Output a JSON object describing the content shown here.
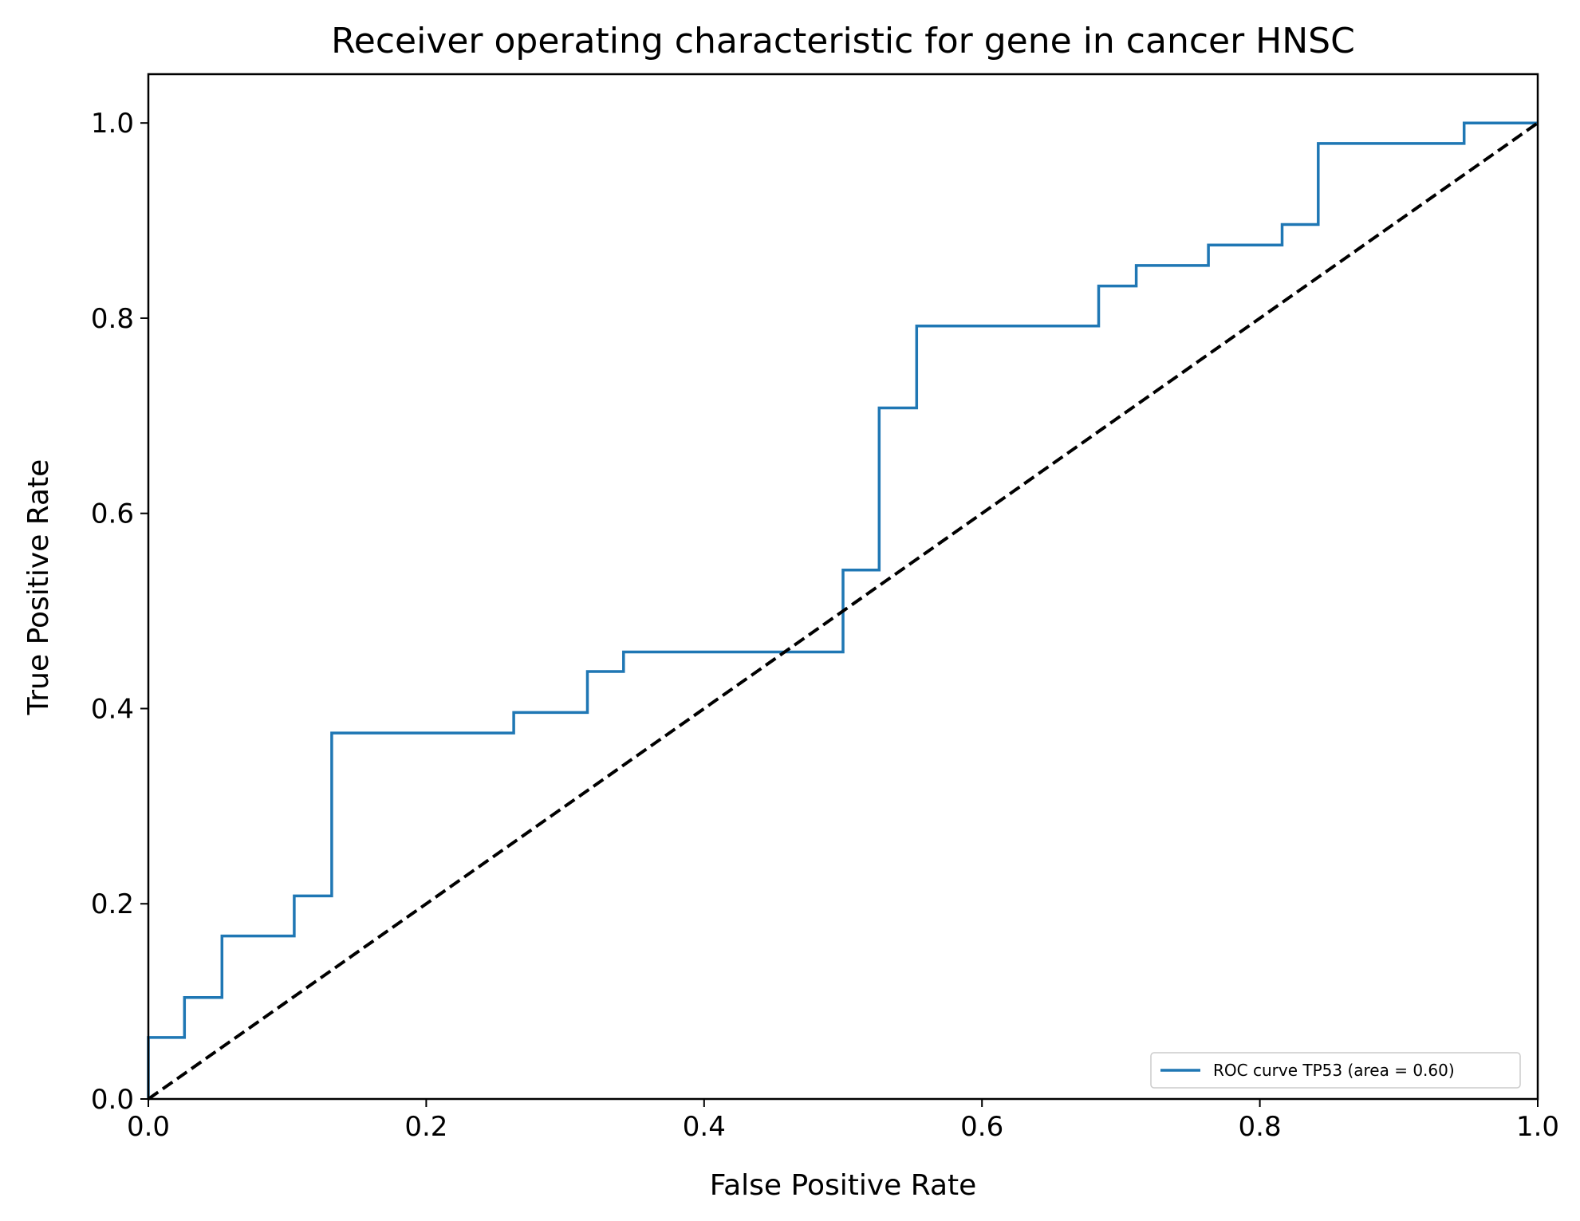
{
  "chart_data": {
    "type": "line",
    "title": "Receiver operating characteristic for gene in cancer HNSC",
    "xlabel": "False Positive Rate",
    "ylabel": "True Positive Rate",
    "xlim": [
      0.0,
      1.0
    ],
    "ylim": [
      0.0,
      1.05
    ],
    "xticks": [
      "0.0",
      "0.2",
      "0.4",
      "0.6",
      "0.8",
      "1.0"
    ],
    "yticks": [
      "0.0",
      "0.2",
      "0.4",
      "0.6",
      "0.8",
      "1.0"
    ],
    "grid": false,
    "legend_position": "lower-right",
    "series": [
      {
        "name": "ROC curve TP53 (area = 0.60)",
        "color": "#1f77b4",
        "style": "step",
        "x": [
          0.0,
          0.0,
          0.026,
          0.026,
          0.053,
          0.053,
          0.105,
          0.105,
          0.132,
          0.132,
          0.263,
          0.263,
          0.316,
          0.316,
          0.342,
          0.342,
          0.5,
          0.5,
          0.526,
          0.526,
          0.553,
          0.553,
          0.684,
          0.684,
          0.711,
          0.711,
          0.763,
          0.763,
          0.816,
          0.816,
          0.842,
          0.842,
          0.947,
          0.947,
          1.0
        ],
        "y": [
          0.0,
          0.063,
          0.063,
          0.104,
          0.104,
          0.167,
          0.167,
          0.208,
          0.208,
          0.375,
          0.375,
          0.396,
          0.396,
          0.438,
          0.438,
          0.458,
          0.458,
          0.542,
          0.542,
          0.708,
          0.708,
          0.792,
          0.792,
          0.833,
          0.833,
          0.854,
          0.854,
          0.875,
          0.875,
          0.896,
          0.896,
          0.979,
          0.979,
          1.0,
          1.0
        ]
      },
      {
        "color": "#000000",
        "style": "dashed",
        "x": [
          0.0,
          1.0
        ],
        "y": [
          0.0,
          1.0
        ]
      }
    ]
  }
}
